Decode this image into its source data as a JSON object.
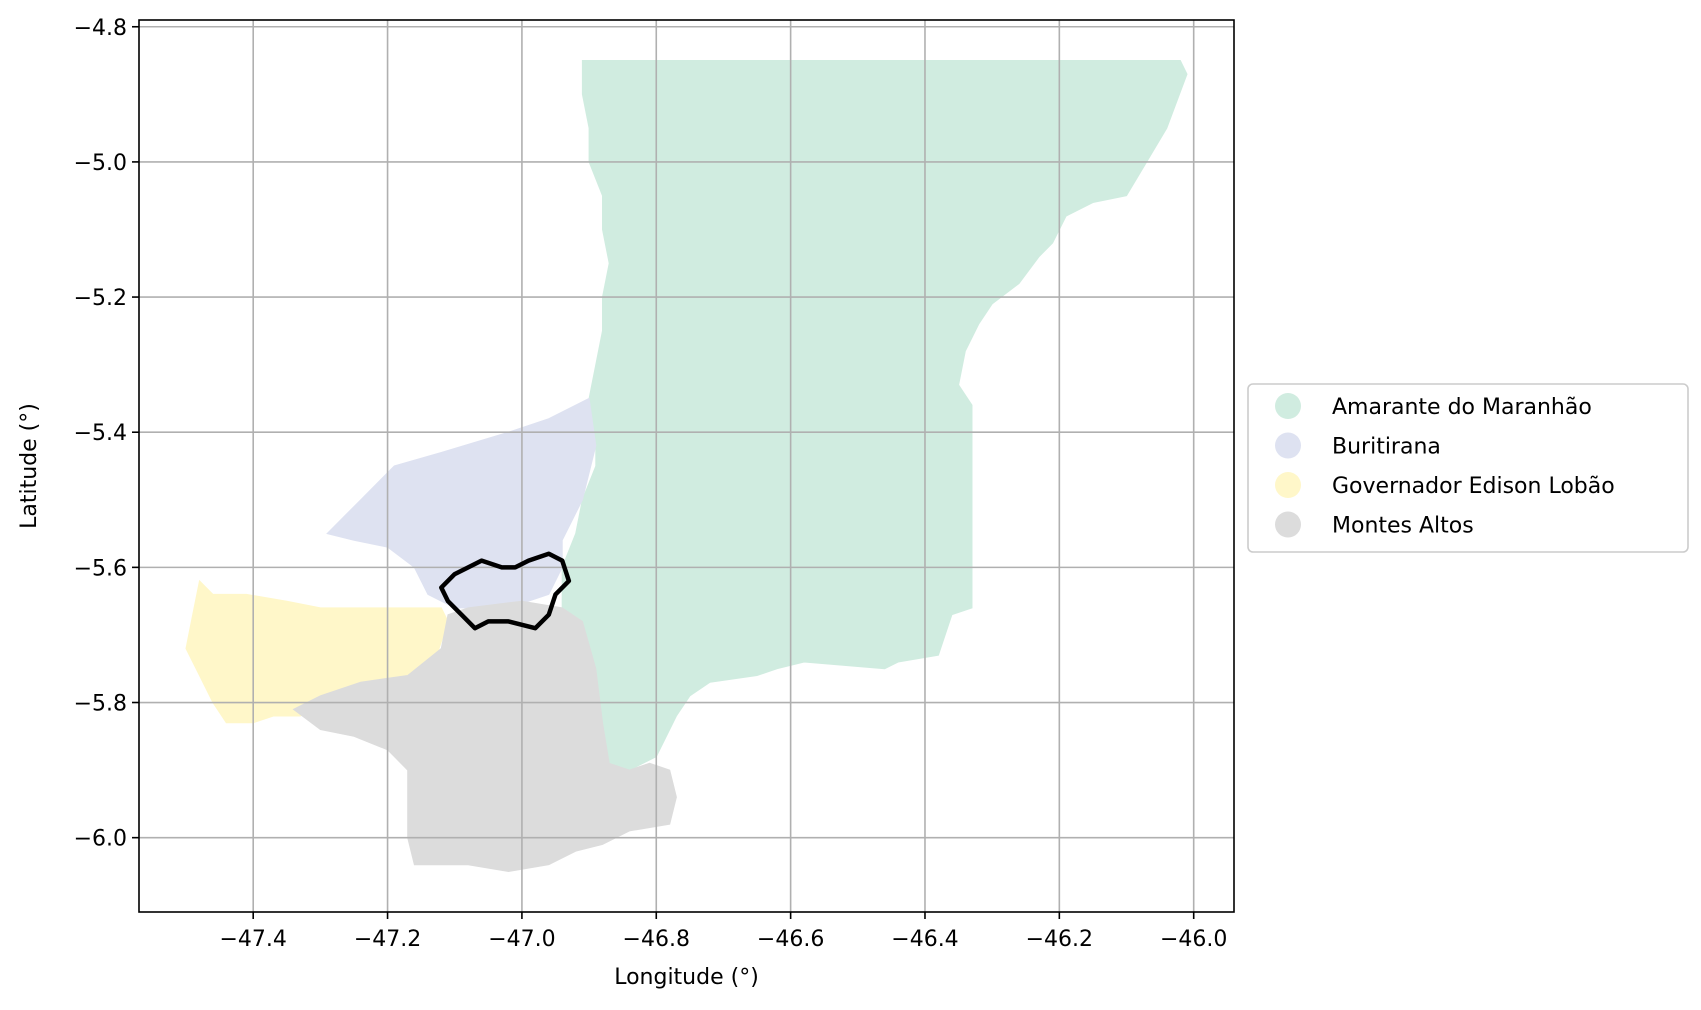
{
  "chart_data": {
    "type": "map",
    "xlabel": "Longitude (°)",
    "ylabel": "Latitude (°)",
    "xlim": [
      -47.57,
      -45.94
    ],
    "ylim": [
      -6.11,
      -4.79
    ],
    "xticks": [
      -47.4,
      -47.2,
      -47.0,
      -46.8,
      -46.6,
      -46.4,
      -46.2,
      -46.0
    ],
    "xtick_labels": [
      "−47.4",
      "−47.2",
      "−47.0",
      "−46.8",
      "−46.6",
      "−46.4",
      "−46.2",
      "−46.0"
    ],
    "yticks": [
      -4.8,
      -5.0,
      -5.2,
      -5.4,
      -5.6,
      -5.8,
      -6.0
    ],
    "ytick_labels": [
      "−4.8",
      "−5.0",
      "−5.2",
      "−5.4",
      "−5.6",
      "−5.8",
      "−6.0"
    ],
    "grid": true,
    "legend_position": "center-right-outside",
    "regions": [
      {
        "name": "Amarante do Maranhão",
        "color": "#d0ece0",
        "boundary": [
          [
            -46.91,
            -4.85
          ],
          [
            -46.02,
            -4.85
          ],
          [
            -46.01,
            -4.87
          ],
          [
            -46.04,
            -4.95
          ],
          [
            -46.07,
            -5.0
          ],
          [
            -46.1,
            -5.05
          ],
          [
            -46.15,
            -5.06
          ],
          [
            -46.19,
            -5.08
          ],
          [
            -46.21,
            -5.12
          ],
          [
            -46.23,
            -5.14
          ],
          [
            -46.26,
            -5.18
          ],
          [
            -46.3,
            -5.21
          ],
          [
            -46.32,
            -5.24
          ],
          [
            -46.34,
            -5.28
          ],
          [
            -46.35,
            -5.33
          ],
          [
            -46.33,
            -5.36
          ],
          [
            -46.33,
            -5.66
          ],
          [
            -46.36,
            -5.67
          ],
          [
            -46.38,
            -5.73
          ],
          [
            -46.44,
            -5.74
          ],
          [
            -46.46,
            -5.75
          ],
          [
            -46.58,
            -5.74
          ],
          [
            -46.62,
            -5.75
          ],
          [
            -46.65,
            -5.76
          ],
          [
            -46.72,
            -5.77
          ],
          [
            -46.75,
            -5.79
          ],
          [
            -46.77,
            -5.82
          ],
          [
            -46.8,
            -5.88
          ],
          [
            -46.84,
            -5.9
          ],
          [
            -46.87,
            -5.89
          ],
          [
            -46.88,
            -5.83
          ],
          [
            -46.9,
            -5.75
          ],
          [
            -46.91,
            -5.68
          ],
          [
            -46.94,
            -5.66
          ],
          [
            -46.94,
            -5.6
          ],
          [
            -46.92,
            -5.55
          ],
          [
            -46.91,
            -5.5
          ],
          [
            -46.89,
            -5.45
          ],
          [
            -46.89,
            -5.42
          ],
          [
            -46.9,
            -5.38
          ],
          [
            -46.9,
            -5.35
          ],
          [
            -46.89,
            -5.3
          ],
          [
            -46.88,
            -5.25
          ],
          [
            -46.88,
            -5.2
          ],
          [
            -46.87,
            -5.15
          ],
          [
            -46.88,
            -5.1
          ],
          [
            -46.88,
            -5.05
          ],
          [
            -46.9,
            -5.0
          ],
          [
            -46.9,
            -4.95
          ],
          [
            -46.91,
            -4.9
          ]
        ]
      },
      {
        "name": "Buritirana",
        "color": "#dee2f1",
        "boundary": [
          [
            -46.9,
            -5.35
          ],
          [
            -46.89,
            -5.42
          ],
          [
            -46.91,
            -5.5
          ],
          [
            -46.94,
            -5.56
          ],
          [
            -46.94,
            -5.6
          ],
          [
            -46.96,
            -5.64
          ],
          [
            -47.02,
            -5.66
          ],
          [
            -47.1,
            -5.66
          ],
          [
            -47.14,
            -5.64
          ],
          [
            -47.16,
            -5.6
          ],
          [
            -47.2,
            -5.57
          ],
          [
            -47.25,
            -5.56
          ],
          [
            -47.29,
            -5.55
          ],
          [
            -47.27,
            -5.53
          ],
          [
            -47.24,
            -5.5
          ],
          [
            -47.19,
            -5.45
          ],
          [
            -47.12,
            -5.43
          ],
          [
            -47.02,
            -5.4
          ],
          [
            -46.96,
            -5.38
          ]
        ]
      },
      {
        "name": "Governador Edison Lobão",
        "color": "#fff7c9",
        "boundary": [
          [
            -47.48,
            -5.62
          ],
          [
            -47.46,
            -5.64
          ],
          [
            -47.41,
            -5.64
          ],
          [
            -47.35,
            -5.65
          ],
          [
            -47.3,
            -5.66
          ],
          [
            -47.12,
            -5.66
          ],
          [
            -47.11,
            -5.68
          ],
          [
            -47.12,
            -5.71
          ],
          [
            -47.13,
            -5.74
          ],
          [
            -47.17,
            -5.77
          ],
          [
            -47.24,
            -5.78
          ],
          [
            -47.27,
            -5.79
          ],
          [
            -47.29,
            -5.8
          ],
          [
            -47.33,
            -5.82
          ],
          [
            -47.37,
            -5.82
          ],
          [
            -47.4,
            -5.83
          ],
          [
            -47.44,
            -5.83
          ],
          [
            -47.46,
            -5.8
          ],
          [
            -47.48,
            -5.76
          ],
          [
            -47.5,
            -5.72
          ],
          [
            -47.49,
            -5.67
          ]
        ]
      },
      {
        "name": "Montes Altos",
        "color": "#dcdcdc",
        "boundary": [
          [
            -46.94,
            -5.66
          ],
          [
            -46.91,
            -5.68
          ],
          [
            -46.89,
            -5.75
          ],
          [
            -46.88,
            -5.83
          ],
          [
            -46.87,
            -5.89
          ],
          [
            -46.84,
            -5.9
          ],
          [
            -46.81,
            -5.89
          ],
          [
            -46.78,
            -5.9
          ],
          [
            -46.77,
            -5.94
          ],
          [
            -46.78,
            -5.98
          ],
          [
            -46.84,
            -5.99
          ],
          [
            -46.88,
            -6.01
          ],
          [
            -46.92,
            -6.02
          ],
          [
            -46.96,
            -6.04
          ],
          [
            -47.02,
            -6.05
          ],
          [
            -47.08,
            -6.04
          ],
          [
            -47.12,
            -6.04
          ],
          [
            -47.16,
            -6.04
          ],
          [
            -47.17,
            -6.0
          ],
          [
            -47.17,
            -5.95
          ],
          [
            -47.17,
            -5.9
          ],
          [
            -47.2,
            -5.87
          ],
          [
            -47.25,
            -5.85
          ],
          [
            -47.3,
            -5.84
          ],
          [
            -47.34,
            -5.81
          ],
          [
            -47.3,
            -5.79
          ],
          [
            -47.24,
            -5.77
          ],
          [
            -47.17,
            -5.76
          ],
          [
            -47.12,
            -5.72
          ],
          [
            -47.11,
            -5.67
          ],
          [
            -47.08,
            -5.66
          ],
          [
            -47.0,
            -5.65
          ]
        ]
      }
    ],
    "highlight_outline": {
      "color": "#000000",
      "boundary": [
        [
          -47.1,
          -5.61
        ],
        [
          -47.08,
          -5.6
        ],
        [
          -47.06,
          -5.59
        ],
        [
          -47.03,
          -5.6
        ],
        [
          -47.01,
          -5.6
        ],
        [
          -46.99,
          -5.59
        ],
        [
          -46.96,
          -5.58
        ],
        [
          -46.94,
          -5.59
        ],
        [
          -46.93,
          -5.62
        ],
        [
          -46.95,
          -5.64
        ],
        [
          -46.96,
          -5.67
        ],
        [
          -46.98,
          -5.69
        ],
        [
          -47.02,
          -5.68
        ],
        [
          -47.05,
          -5.68
        ],
        [
          -47.07,
          -5.69
        ],
        [
          -47.09,
          -5.67
        ],
        [
          -47.11,
          -5.65
        ],
        [
          -47.12,
          -5.63
        ]
      ]
    }
  }
}
